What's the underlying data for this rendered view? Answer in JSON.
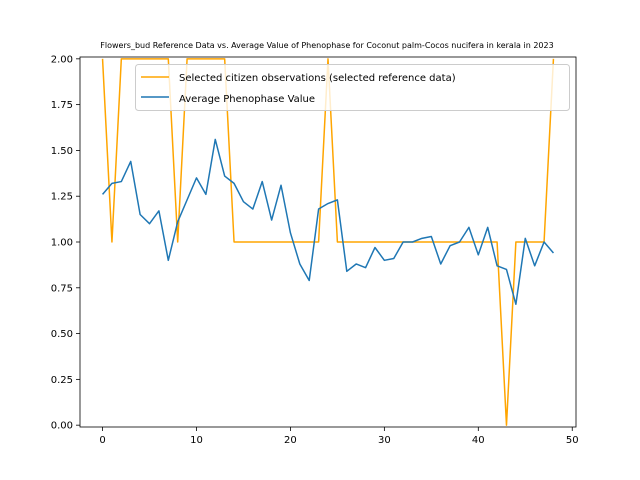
{
  "chart_data": {
    "type": "line",
    "title": "Flowers_bud Reference Data vs. Average Value of Phenophase for Coconut palm-Cocos nucifera in kerala in 2023",
    "xlabel": "",
    "ylabel": "",
    "xlim": [
      -2.4,
      50.4
    ],
    "ylim": [
      -0.01,
      2.01
    ],
    "xticks": [
      0,
      10,
      20,
      30,
      40,
      50
    ],
    "yticks": [
      0.0,
      0.25,
      0.5,
      0.75,
      1.0,
      1.25,
      1.5,
      1.75,
      2.0
    ],
    "grid": false,
    "legend_position": "top-right",
    "series": [
      {
        "name": "Selected citizen observations (selected reference data)",
        "color": "#ffa500",
        "x": [
          0,
          1,
          2,
          3,
          4,
          5,
          6,
          7,
          8,
          9,
          10,
          11,
          12,
          13,
          14,
          15,
          16,
          17,
          18,
          19,
          20,
          21,
          22,
          23,
          24,
          25,
          26,
          27,
          28,
          29,
          30,
          31,
          32,
          33,
          34,
          35,
          36,
          37,
          38,
          39,
          40,
          41,
          42,
          43,
          44,
          45,
          46,
          47,
          48
        ],
        "values": [
          2,
          1,
          2,
          2,
          2,
          2,
          2,
          2,
          1,
          2,
          2,
          2,
          2,
          2,
          1,
          1,
          1,
          1,
          1,
          1,
          1,
          1,
          1,
          1,
          2,
          1,
          1,
          1,
          1,
          1,
          1,
          1,
          1,
          1,
          1,
          1,
          1,
          1,
          1,
          1,
          1,
          1,
          1,
          0,
          1,
          1,
          1,
          1,
          2
        ]
      },
      {
        "name": "Average Phenophase Value",
        "color": "#1f77b4",
        "x": [
          0,
          1,
          2,
          3,
          4,
          5,
          6,
          7,
          8,
          9,
          10,
          11,
          12,
          13,
          14,
          15,
          16,
          17,
          18,
          19,
          20,
          21,
          22,
          23,
          24,
          25,
          26,
          27,
          28,
          29,
          30,
          31,
          32,
          33,
          34,
          35,
          36,
          37,
          38,
          39,
          40,
          41,
          42,
          43,
          44,
          45,
          46,
          47,
          48
        ],
        "values": [
          1.26,
          1.32,
          1.33,
          1.44,
          1.15,
          1.1,
          1.17,
          0.9,
          1.11,
          1.23,
          1.35,
          1.26,
          1.56,
          1.36,
          1.32,
          1.22,
          1.18,
          1.33,
          1.12,
          1.31,
          1.05,
          0.88,
          0.79,
          1.18,
          1.21,
          1.23,
          0.84,
          0.88,
          0.86,
          0.97,
          0.9,
          0.91,
          1.0,
          1.0,
          1.02,
          1.03,
          0.88,
          0.98,
          1.0,
          1.08,
          0.93,
          1.08,
          0.87,
          0.85,
          0.66,
          1.02,
          0.87,
          1.0,
          0.94
        ]
      }
    ]
  }
}
